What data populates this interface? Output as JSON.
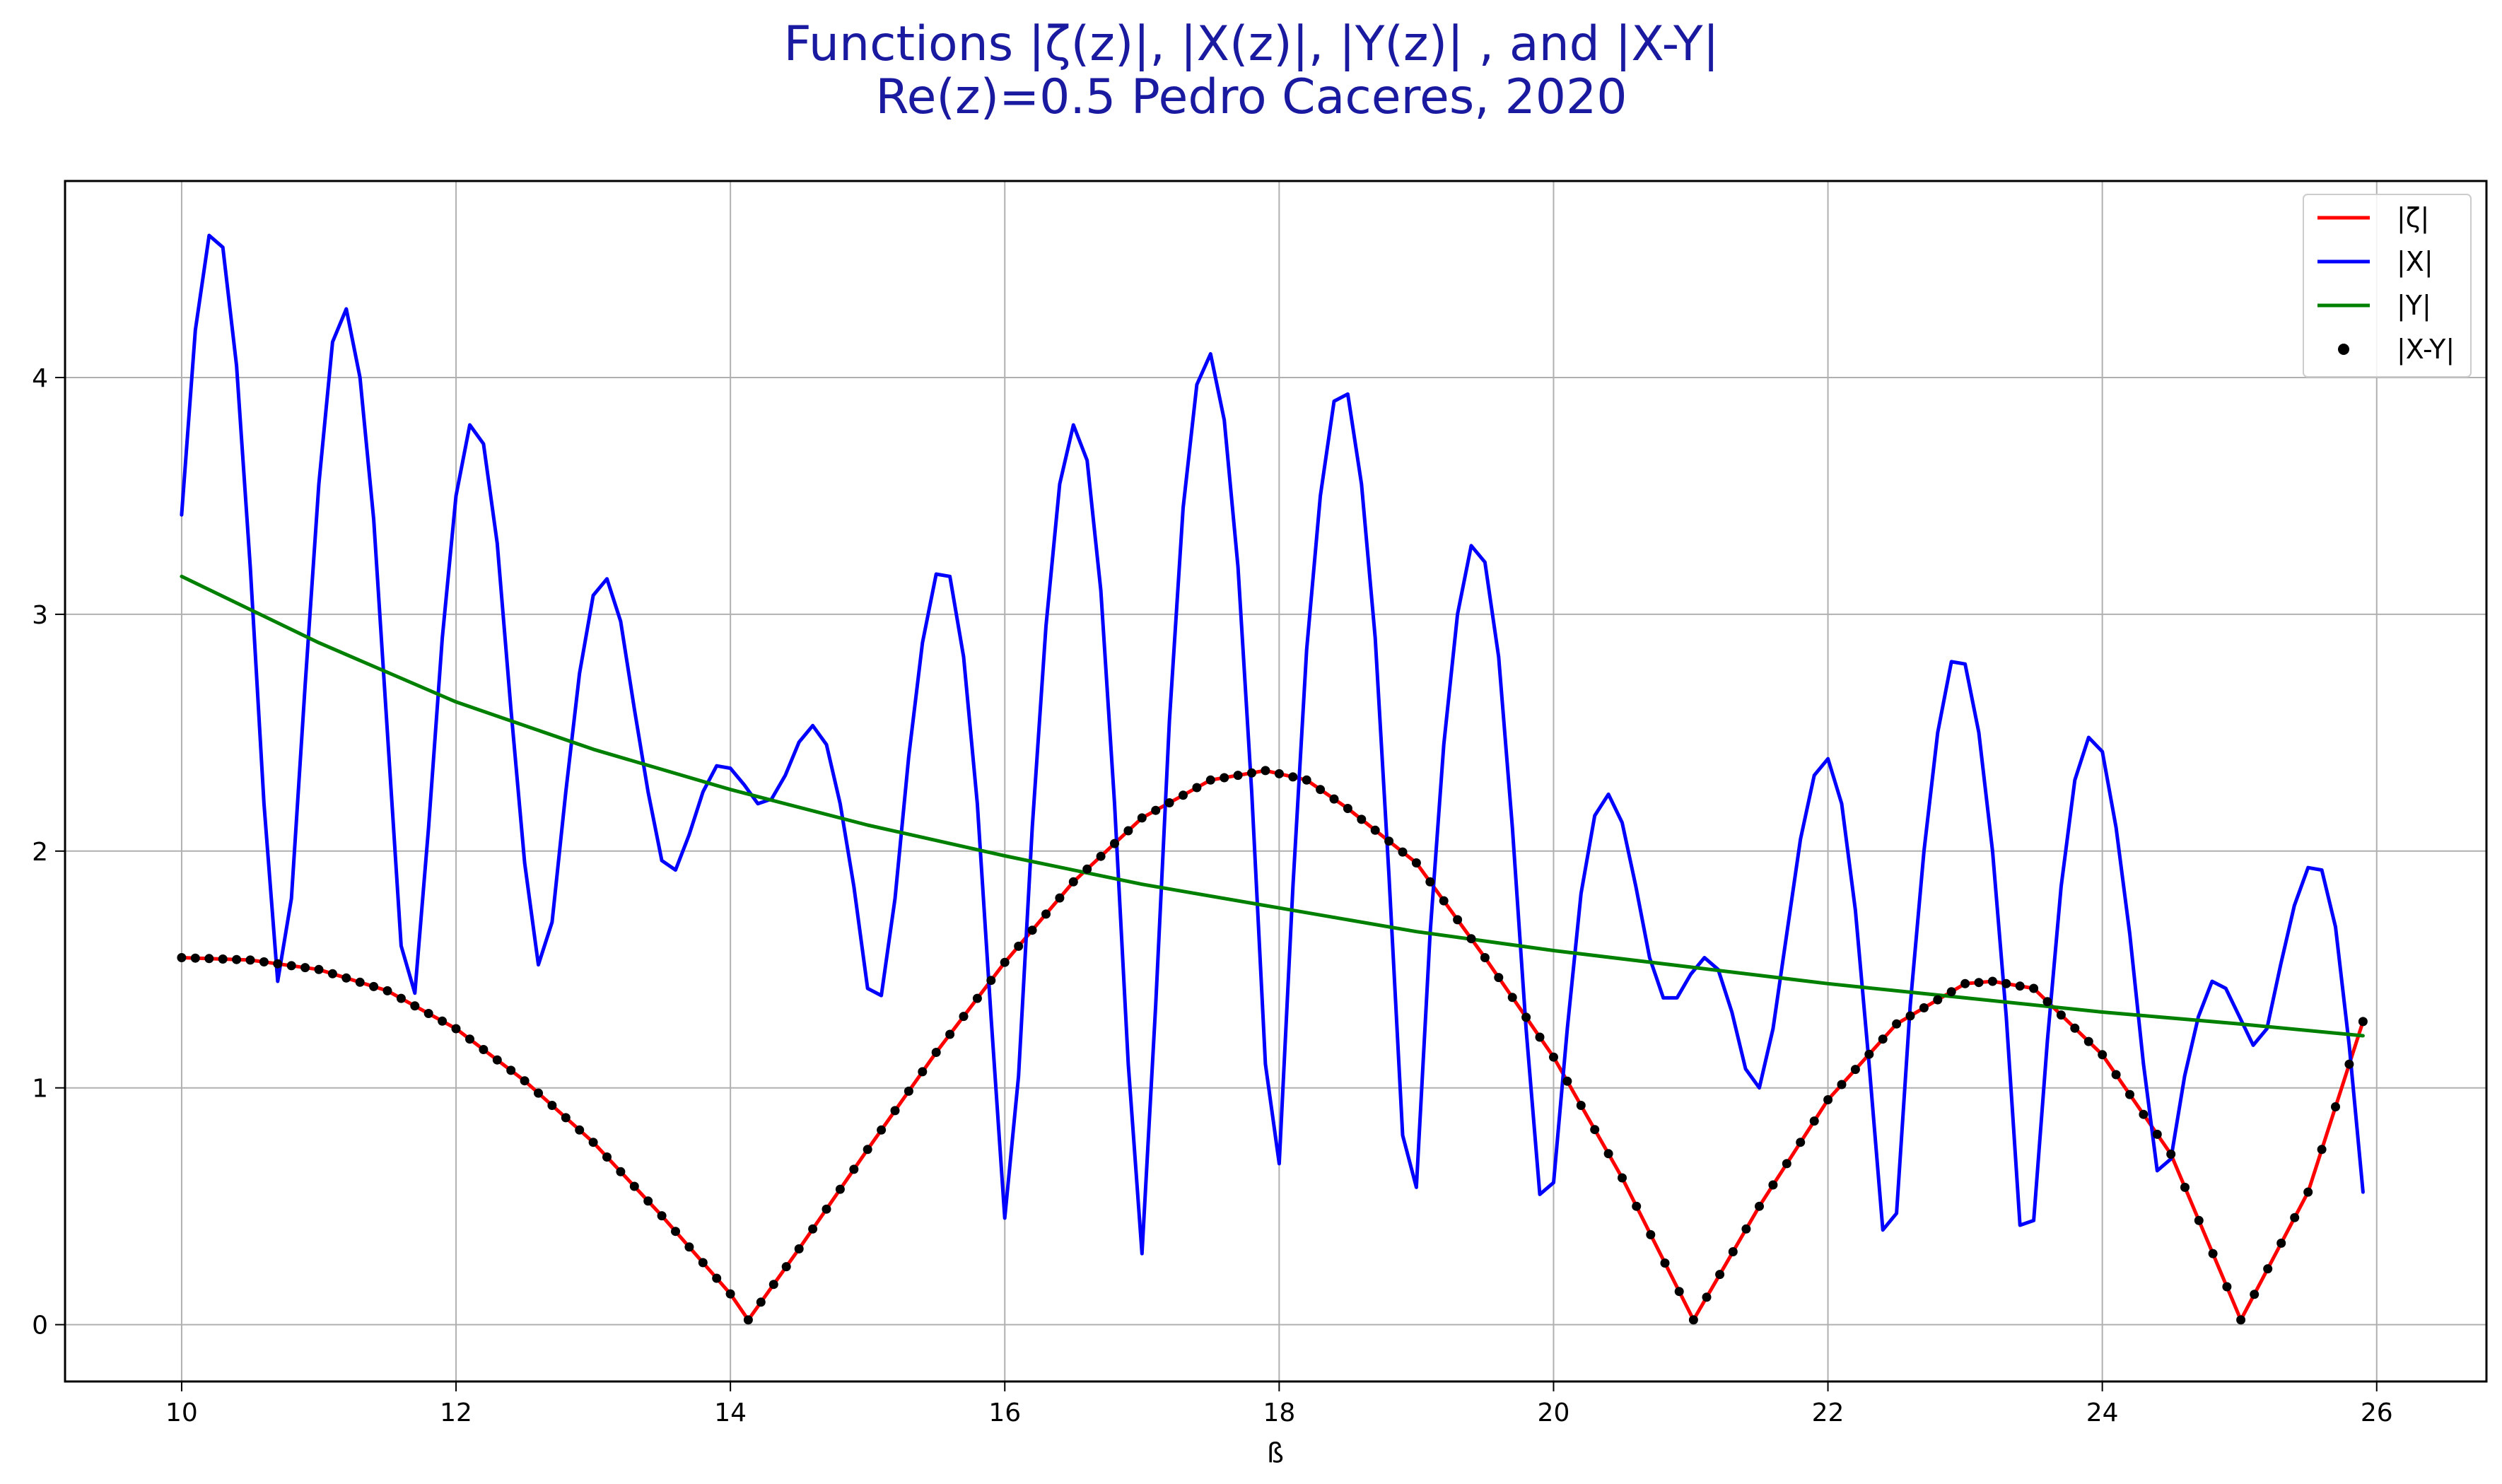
{
  "chart_data": {
    "type": "line",
    "title": "Functions |ζ(z)|, |X(z)|, |Y(z)| , and |X-Y|",
    "subtitle": "Re(z)=0.5    Pedro Caceres, 2020",
    "xlabel": "ß",
    "ylabel": "",
    "xlim": [
      9.15,
      26.8
    ],
    "ylim": [
      -0.24,
      4.83
    ],
    "xticks": [
      "10",
      "12",
      "14",
      "16",
      "18",
      "20",
      "22",
      "24",
      "26"
    ],
    "yticks": [
      "0",
      "1",
      "2",
      "3",
      "4"
    ],
    "grid": true,
    "legend_position": "top-right",
    "series": [
      {
        "name": "|ζ|",
        "kind": "line",
        "color": "#ff0000",
        "x": [
          10,
          10.5,
          11,
          11.5,
          12,
          12.5,
          13,
          13.5,
          14,
          14.13,
          14.5,
          15,
          15.5,
          16,
          16.5,
          17,
          17.5,
          17.9,
          18.2,
          18.5,
          19,
          19.5,
          20,
          20.5,
          21.02,
          21.5,
          22,
          22.5,
          23,
          23.2,
          23.5,
          24,
          24.5,
          25.01,
          25.5,
          25.9
        ],
        "y": [
          1.55,
          1.54,
          1.5,
          1.41,
          1.25,
          1.03,
          0.77,
          0.46,
          0.13,
          0.02,
          0.32,
          0.74,
          1.15,
          1.53,
          1.87,
          2.14,
          2.3,
          2.34,
          2.3,
          2.18,
          1.95,
          1.55,
          1.13,
          0.62,
          0.02,
          0.5,
          0.95,
          1.27,
          1.44,
          1.45,
          1.42,
          1.14,
          0.72,
          0.02,
          0.56,
          1.28
        ]
      },
      {
        "name": "|X|",
        "kind": "line",
        "color": "#0000ff",
        "x": [
          10.0,
          10.1,
          10.2,
          10.3,
          10.4,
          10.5,
          10.6,
          10.7,
          10.8,
          10.9,
          11.0,
          11.1,
          11.2,
          11.3,
          11.4,
          11.5,
          11.6,
          11.7,
          11.8,
          11.9,
          12.0,
          12.1,
          12.2,
          12.3,
          12.4,
          12.5,
          12.6,
          12.7,
          12.8,
          12.9,
          13.0,
          13.1,
          13.2,
          13.3,
          13.4,
          13.5,
          13.6,
          13.7,
          13.8,
          13.9,
          14.0,
          14.1,
          14.2,
          14.3,
          14.4,
          14.5,
          14.6,
          14.7,
          14.8,
          14.9,
          15.0,
          15.1,
          15.2,
          15.3,
          15.4,
          15.5,
          15.6,
          15.7,
          15.8,
          15.9,
          16.0,
          16.1,
          16.2,
          16.3,
          16.4,
          16.5,
          16.6,
          16.7,
          16.8,
          16.9,
          17.0,
          17.1,
          17.2,
          17.3,
          17.4,
          17.5,
          17.6,
          17.7,
          17.8,
          17.9,
          18.0,
          18.1,
          18.2,
          18.3,
          18.4,
          18.5,
          18.6,
          18.7,
          18.8,
          18.9,
          19.0,
          19.1,
          19.2,
          19.3,
          19.4,
          19.5,
          19.6,
          19.7,
          19.8,
          19.9,
          20.0,
          20.1,
          20.2,
          20.3,
          20.4,
          20.5,
          20.6,
          20.7,
          20.8,
          20.9,
          21.0,
          21.1,
          21.2,
          21.3,
          21.4,
          21.5,
          21.6,
          21.7,
          21.8,
          21.9,
          22.0,
          22.1,
          22.2,
          22.3,
          22.4,
          22.5,
          22.6,
          22.7,
          22.8,
          22.9,
          23.0,
          23.1,
          23.2,
          23.3,
          23.4,
          23.5,
          23.6,
          23.7,
          23.8,
          23.9,
          24.0,
          24.1,
          24.2,
          24.3,
          24.4,
          24.5,
          24.6,
          24.7,
          24.8,
          24.9,
          25.0,
          25.1,
          25.2,
          25.3,
          25.4,
          25.5,
          25.6,
          25.7,
          25.8,
          25.9
        ],
        "y": [
          3.42,
          4.2,
          4.6,
          4.55,
          4.05,
          3.2,
          2.2,
          1.45,
          1.8,
          2.7,
          3.55,
          4.15,
          4.29,
          4.0,
          3.4,
          2.5,
          1.6,
          1.4,
          2.1,
          2.9,
          3.5,
          3.8,
          3.72,
          3.3,
          2.6,
          1.95,
          1.52,
          1.7,
          2.25,
          2.75,
          3.08,
          3.15,
          2.97,
          2.6,
          2.25,
          1.96,
          1.92,
          2.07,
          2.25,
          2.36,
          2.35,
          2.28,
          2.2,
          2.22,
          2.32,
          2.46,
          2.53,
          2.45,
          2.2,
          1.85,
          1.42,
          1.39,
          1.8,
          2.4,
          2.88,
          3.17,
          3.16,
          2.82,
          2.2,
          1.3,
          0.45,
          1.05,
          2.1,
          2.95,
          3.55,
          3.8,
          3.65,
          3.1,
          2.2,
          1.1,
          0.3,
          1.35,
          2.55,
          3.45,
          3.97,
          4.1,
          3.82,
          3.2,
          2.25,
          1.1,
          0.68,
          1.85,
          2.85,
          3.5,
          3.9,
          3.93,
          3.55,
          2.9,
          1.9,
          0.8,
          0.58,
          1.65,
          2.45,
          3.0,
          3.29,
          3.22,
          2.82,
          2.1,
          1.25,
          0.55,
          0.6,
          1.25,
          1.82,
          2.15,
          2.24,
          2.12,
          1.85,
          1.55,
          1.38,
          1.38,
          1.48,
          1.55,
          1.5,
          1.32,
          1.08,
          1.0,
          1.25,
          1.65,
          2.05,
          2.32,
          2.39,
          2.2,
          1.75,
          1.1,
          0.4,
          0.47,
          1.35,
          2.0,
          2.5,
          2.8,
          2.79,
          2.5,
          2.0,
          1.3,
          0.42,
          0.44,
          1.2,
          1.85,
          2.3,
          2.48,
          2.42,
          2.1,
          1.65,
          1.1,
          0.65,
          0.7,
          1.05,
          1.3,
          1.45,
          1.42,
          1.3,
          1.18,
          1.25,
          1.52,
          1.77,
          1.93,
          1.92,
          1.68,
          1.18,
          0.56
        ]
      },
      {
        "name": "|Y|",
        "kind": "line",
        "color": "#008000",
        "x": [
          10,
          11,
          12,
          13,
          14,
          15,
          16,
          17,
          18,
          19,
          20,
          21,
          22,
          23,
          24,
          25,
          25.9
        ],
        "y": [
          3.16,
          2.88,
          2.63,
          2.43,
          2.26,
          2.11,
          1.98,
          1.86,
          1.76,
          1.66,
          1.58,
          1.51,
          1.44,
          1.38,
          1.32,
          1.27,
          1.22
        ]
      },
      {
        "name": "|X-Y|",
        "kind": "scatter",
        "color": "#000000",
        "x": [
          10,
          10.5,
          11,
          11.5,
          12,
          12.5,
          13,
          13.5,
          14,
          14.13,
          14.5,
          15,
          15.5,
          16,
          16.5,
          17,
          17.5,
          17.9,
          18.2,
          18.5,
          19,
          19.5,
          20,
          20.5,
          21.02,
          21.5,
          22,
          22.5,
          23,
          23.2,
          23.5,
          24,
          24.5,
          25.01,
          25.5,
          25.9
        ],
        "y": [
          1.55,
          1.54,
          1.5,
          1.41,
          1.25,
          1.03,
          0.77,
          0.46,
          0.13,
          0.02,
          0.32,
          0.74,
          1.15,
          1.53,
          1.87,
          2.14,
          2.3,
          2.34,
          2.3,
          2.18,
          1.95,
          1.55,
          1.13,
          0.62,
          0.02,
          0.5,
          0.95,
          1.27,
          1.44,
          1.45,
          1.42,
          1.14,
          0.72,
          0.02,
          0.56,
          1.28
        ]
      }
    ]
  }
}
